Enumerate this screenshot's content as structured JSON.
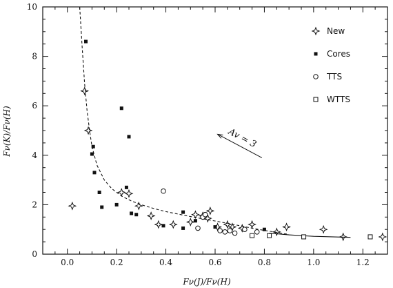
{
  "chart_data": {
    "type": "scatter",
    "title": "",
    "xlabel": "Fν(J)/Fν(H)",
    "ylabel": "Fν(K)/Fν(H)",
    "xlim": [
      -0.1,
      1.3
    ],
    "ylim": [
      0,
      10
    ],
    "x_ticks": [
      "0.0",
      "0.2",
      "0.4",
      "0.6",
      "0.8",
      "1.0",
      "1.2"
    ],
    "y_ticks": [
      "0",
      "2",
      "4",
      "6",
      "8",
      "10"
    ],
    "legend_position": "top-right",
    "grid": false,
    "series": [
      {
        "name": "New",
        "marker": "four-point-star",
        "points": [
          [
            0.02,
            1.95
          ],
          [
            0.07,
            6.6
          ],
          [
            0.085,
            5.0
          ],
          [
            0.22,
            2.5
          ],
          [
            0.25,
            2.45
          ],
          [
            0.29,
            1.95
          ],
          [
            0.34,
            1.55
          ],
          [
            0.37,
            1.2
          ],
          [
            0.43,
            1.2
          ],
          [
            0.5,
            1.3
          ],
          [
            0.52,
            1.6
          ],
          [
            0.55,
            1.55
          ],
          [
            0.57,
            1.45
          ],
          [
            0.58,
            1.75
          ],
          [
            0.61,
            1.1
          ],
          [
            0.65,
            1.2
          ],
          [
            0.67,
            1.1
          ],
          [
            0.71,
            1.05
          ],
          [
            0.75,
            1.2
          ],
          [
            0.85,
            0.9
          ],
          [
            0.89,
            1.1
          ],
          [
            1.04,
            1.0
          ],
          [
            1.12,
            0.7
          ],
          [
            1.28,
            0.7
          ]
        ]
      },
      {
        "name": "Cores",
        "marker": "filled-square",
        "points": [
          [
            0.075,
            8.6
          ],
          [
            0.1,
            4.05
          ],
          [
            0.105,
            4.35
          ],
          [
            0.11,
            3.3
          ],
          [
            0.13,
            2.5
          ],
          [
            0.14,
            1.9
          ],
          [
            0.2,
            2.0
          ],
          [
            0.22,
            5.9
          ],
          [
            0.24,
            2.7
          ],
          [
            0.25,
            4.75
          ],
          [
            0.26,
            1.65
          ],
          [
            0.28,
            1.6
          ],
          [
            0.39,
            1.15
          ],
          [
            0.47,
            1.7
          ],
          [
            0.47,
            1.05
          ],
          [
            0.52,
            1.35
          ],
          [
            0.6,
            1.1
          ],
          [
            0.8,
            1.0
          ]
        ]
      },
      {
        "name": "TTS",
        "marker": "open-circle",
        "points": [
          [
            0.39,
            2.55
          ],
          [
            0.53,
            1.05
          ],
          [
            0.55,
            1.5
          ],
          [
            0.56,
            1.6
          ],
          [
            0.62,
            0.95
          ],
          [
            0.64,
            0.9
          ],
          [
            0.66,
            0.95
          ],
          [
            0.68,
            0.85
          ],
          [
            0.72,
            1.0
          ],
          [
            0.77,
            0.9
          ]
        ]
      },
      {
        "name": "WTTS",
        "marker": "open-square",
        "points": [
          [
            0.75,
            0.75
          ],
          [
            0.82,
            0.75
          ],
          [
            0.96,
            0.7
          ],
          [
            1.23,
            0.7
          ]
        ]
      }
    ],
    "curves": [
      {
        "style": "dashed",
        "points": [
          [
            0.05,
            10.0
          ],
          [
            0.06,
            8.4
          ],
          [
            0.07,
            6.9
          ],
          [
            0.08,
            5.8
          ],
          [
            0.09,
            5.0
          ],
          [
            0.1,
            4.35
          ],
          [
            0.12,
            3.6
          ],
          [
            0.15,
            3.0
          ],
          [
            0.18,
            2.65
          ],
          [
            0.22,
            2.35
          ],
          [
            0.26,
            2.15
          ],
          [
            0.3,
            2.0
          ],
          [
            0.35,
            1.85
          ],
          [
            0.4,
            1.72
          ],
          [
            0.45,
            1.62
          ],
          [
            0.5,
            1.52
          ],
          [
            0.55,
            1.43
          ],
          [
            0.6,
            1.34
          ],
          [
            0.65,
            1.25
          ],
          [
            0.7,
            1.15
          ],
          [
            0.75,
            1.05
          ],
          [
            0.8,
            0.96
          ],
          [
            0.85,
            0.88
          ],
          [
            0.9,
            0.8
          ]
        ]
      },
      {
        "style": "solid",
        "points": [
          [
            0.82,
            0.85
          ],
          [
            0.9,
            0.78
          ],
          [
            1.0,
            0.72
          ],
          [
            1.15,
            0.68
          ]
        ]
      }
    ],
    "reddening_vector": {
      "label": "Av = 3",
      "from": [
        0.79,
        3.9
      ],
      "to": [
        0.61,
        4.85
      ]
    }
  }
}
